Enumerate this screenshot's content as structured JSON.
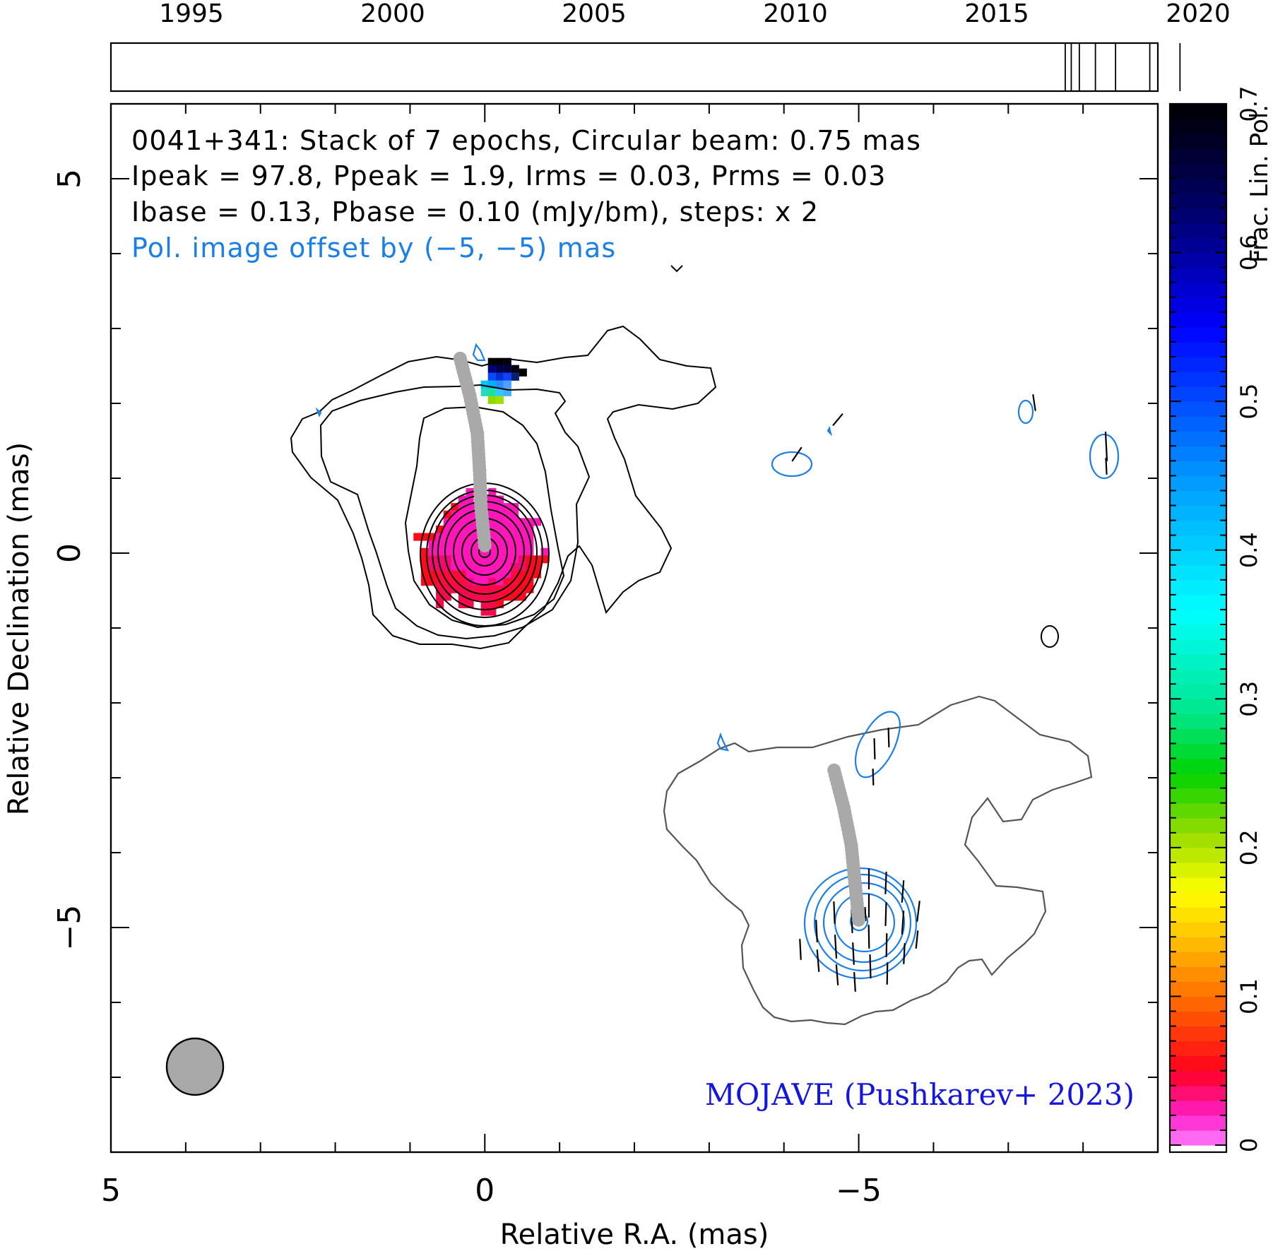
{
  "chart_data": {
    "type": "contour",
    "source": "0041+341",
    "header": {
      "line1": "0041+341: Stack of 7 epochs, Circular beam: 0.75 mas",
      "line2": "Ipeak = 97.8, Ppeak = 1.9, Irms = 0.03, Prms = 0.03",
      "line3": "Ibase = 0.13, Pbase = 0.10 (mJy/bm), steps: x 2",
      "line4": "Pol. image offset by (−5, −5) mas"
    },
    "credit": "MOJAVE (Pushkarev+ 2023)",
    "xlabel": "Relative R.A. (mas)",
    "ylabel": "Relative Declination (mas)",
    "xlim": [
      5,
      -9
    ],
    "ylim": [
      -8,
      6
    ],
    "x_ticks": [
      {
        "value": 5,
        "label": "5"
      },
      {
        "value": 0,
        "label": "0"
      },
      {
        "value": -5,
        "label": "−5"
      }
    ],
    "y_ticks": [
      {
        "value": 5,
        "label": "5"
      },
      {
        "value": 0,
        "label": "0"
      },
      {
        "value": -5,
        "label": "−5"
      }
    ],
    "timeline": {
      "range": [
        1993.0,
        2019.0
      ],
      "ticks": [
        "1995",
        "2000",
        "2005",
        "2010",
        "2015",
        "2020"
      ],
      "tick_years": [
        1995,
        2000,
        2005,
        2010,
        2015,
        2020
      ],
      "epochs": [
        2016.7,
        2016.85,
        2017.05,
        2017.45,
        2017.95,
        2018.8,
        2019.55
      ]
    },
    "colorbar": {
      "label": "Frac. Lin. Pol.",
      "range": [
        0,
        0.7
      ],
      "ticks": [
        "0",
        "0.1",
        "0.2",
        "0.3",
        "0.4",
        "0.5",
        "0.6",
        "0.7"
      ]
    },
    "beam_fwhm_mas": 0.75,
    "stokes_I_ridge": [
      [
        0,
        0.1
      ],
      [
        0.05,
        0.6
      ],
      [
        0.07,
        1.1
      ],
      [
        0.1,
        1.6
      ],
      [
        0.2,
        2.1
      ],
      [
        0.33,
        2.6
      ]
    ],
    "pol_ridge": [
      [
        -5,
        -4.9
      ],
      [
        -4.95,
        -4.4
      ],
      [
        -4.9,
        -3.9
      ],
      [
        -4.8,
        -3.4
      ],
      [
        -4.67,
        -2.9
      ]
    ],
    "colors": {
      "stokes_contour": "#000000",
      "pol_contour": "#1a7fe6",
      "pol_offset_contour": "#555555",
      "ridge": "#a9a9a9",
      "credit": "#1515e0",
      "pol_text": "#1a7fe6"
    }
  }
}
